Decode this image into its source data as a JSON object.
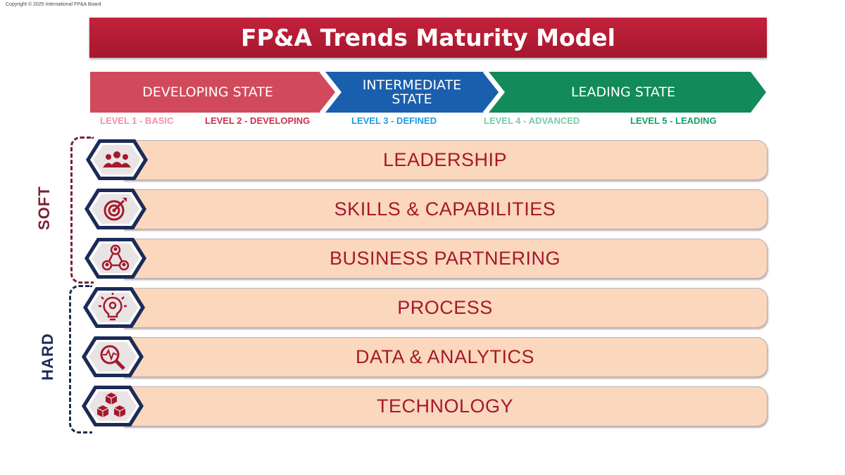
{
  "copyright": "Copyright © 2025 International FP&A Board",
  "title": "FP&A Trends Maturity Model",
  "states": [
    {
      "line1": "DEVELOPING STATE",
      "line2": "",
      "color": "#d14a5c"
    },
    {
      "line1": "INTERMEDIATE",
      "line2": "STATE",
      "color": "#1a5fae"
    },
    {
      "line1": "LEADING STATE",
      "line2": "",
      "color": "#128a5a"
    }
  ],
  "levels": [
    {
      "label": "LEVEL 1 - BASIC",
      "color": "#ef93a3"
    },
    {
      "label": "LEVEL 2 - DEVELOPING",
      "color": "#c8324b"
    },
    {
      "label": "LEVEL 3 - DEFINED",
      "color": "#1e9be0"
    },
    {
      "label": "LEVEL 4 - ADVANCED",
      "color": "#7fc9a9"
    },
    {
      "label": "LEVEL 5 - LEADING",
      "color": "#17a06a"
    }
  ],
  "groups": {
    "soft": {
      "label": "SOFT",
      "color": "#7d1f35"
    },
    "hard": {
      "label": "HARD",
      "color": "#1b2b58"
    }
  },
  "dimensions": [
    {
      "label": "LEADERSHIP",
      "icon": "people-group-icon"
    },
    {
      "label": "SKILLS & CAPABILITIES",
      "icon": "target-icon"
    },
    {
      "label": "BUSINESS PARTNERING",
      "icon": "network-people-icon"
    },
    {
      "label": "PROCESS",
      "icon": "lightbulb-gear-icon"
    },
    {
      "label": "DATA & ANALYTICS",
      "icon": "magnifier-pulse-icon"
    },
    {
      "label": "TECHNOLOGY",
      "icon": "cubes-icon"
    }
  ],
  "colors": {
    "title": "#a5182d",
    "row_fill": "#fbd7bd",
    "hex_border": "#1b2b58",
    "icon": "#a5182d"
  }
}
